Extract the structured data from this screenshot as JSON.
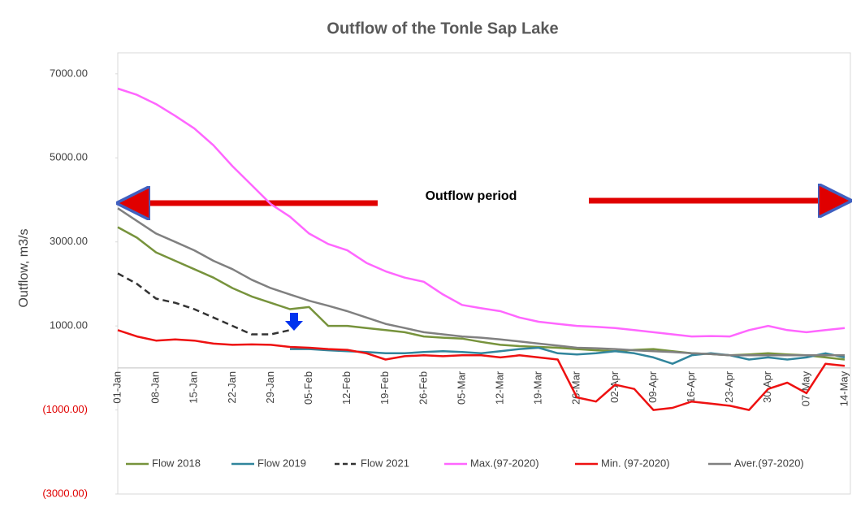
{
  "chart_data": {
    "type": "line",
    "title": "Outflow of the Tonle Sap Lake",
    "y_label": "Outflow, m3/s",
    "annotation": "Outflow period",
    "categories": [
      "01-Jan",
      null,
      "08-Jan",
      null,
      "15-Jan",
      null,
      "22-Jan",
      null,
      "29-Jan",
      null,
      "05-Feb",
      null,
      "12-Feb",
      null,
      "19-Feb",
      null,
      "26-Feb",
      null,
      "05-Mar",
      null,
      "12-Mar",
      null,
      "19-Mar",
      null,
      "26-Mar",
      null,
      "02-Apr",
      null,
      "09-Apr",
      null,
      "16-Apr",
      null,
      "23-Apr",
      null,
      "30-Apr",
      null,
      "07-May",
      null,
      "14-May"
    ],
    "ylim": [
      -3000,
      7500
    ],
    "yticks": [
      {
        "value": 7000,
        "label": "7000.00"
      },
      {
        "value": 5000,
        "label": "5000.00"
      },
      {
        "value": 3000,
        "label": "3000.00"
      },
      {
        "value": 1000,
        "label": "1000.00"
      },
      {
        "value": -1000,
        "label": "(1000.00)"
      },
      {
        "value": -3000,
        "label": "(3000.00)"
      }
    ],
    "grid": false,
    "legend": "bottom",
    "series": [
      {
        "name": "Flow 2018",
        "color": "#77933c",
        "dash": false,
        "values": [
          3350,
          3100,
          2750,
          2550,
          2350,
          2150,
          1900,
          1700,
          1550,
          1400,
          1450,
          1000,
          1000,
          950,
          900,
          850,
          750,
          720,
          700,
          620,
          550,
          520,
          500,
          480,
          450,
          420,
          400,
          430,
          450,
          400,
          350,
          330,
          300,
          320,
          350,
          320,
          300,
          250,
          200
        ]
      },
      {
        "name": "Flow 2019",
        "color": "#31859c",
        "dash": false,
        "values": [
          null,
          null,
          null,
          null,
          null,
          null,
          null,
          null,
          null,
          450,
          450,
          420,
          400,
          380,
          350,
          350,
          380,
          400,
          380,
          350,
          400,
          450,
          480,
          350,
          320,
          350,
          400,
          350,
          250,
          100,
          300,
          350,
          300,
          200,
          250,
          200,
          250,
          350,
          250
        ]
      },
      {
        "name": "Flow 2021",
        "color": "#333333",
        "dash": true,
        "values": [
          2250,
          2000,
          1650,
          1550,
          1400,
          1200,
          1000,
          800,
          800,
          900,
          null,
          null,
          null,
          null,
          null,
          null,
          null,
          null,
          null,
          null,
          null,
          null,
          null,
          null,
          null,
          null,
          null,
          null,
          null,
          null,
          null,
          null,
          null,
          null,
          null,
          null,
          null,
          null,
          null
        ]
      },
      {
        "name": "Max.(97-2020)",
        "color": "#ff66ff",
        "dash": false,
        "values": [
          6650,
          6500,
          6280,
          6000,
          5700,
          5300,
          4800,
          4350,
          3900,
          3600,
          3200,
          2950,
          2800,
          2500,
          2300,
          2150,
          2050,
          1750,
          1500,
          1420,
          1350,
          1200,
          1100,
          1050,
          1000,
          980,
          950,
          900,
          850,
          800,
          750,
          760,
          750,
          900,
          1000,
          900,
          850,
          900,
          950
        ]
      },
      {
        "name": "Min. (97-2020)",
        "color": "#ee1111",
        "dash": false,
        "values": [
          900,
          750,
          650,
          680,
          650,
          580,
          550,
          560,
          550,
          500,
          480,
          450,
          430,
          350,
          200,
          280,
          300,
          280,
          300,
          300,
          250,
          300,
          250,
          200,
          -700,
          -800,
          -400,
          -500,
          -1000,
          -950,
          -800,
          -850,
          -900,
          -1000,
          -500,
          -350,
          -600,
          100,
          50
        ]
      },
      {
        "name": "Aver.(97-2020)",
        "color": "#808080",
        "dash": false,
        "values": [
          3800,
          3500,
          3200,
          3000,
          2800,
          2550,
          2350,
          2100,
          1900,
          1750,
          1600,
          1480,
          1350,
          1200,
          1050,
          950,
          850,
          800,
          750,
          720,
          680,
          630,
          580,
          530,
          480,
          470,
          450,
          420,
          400,
          380,
          350,
          330,
          300,
          300,
          300,
          300,
          300,
          300,
          300
        ]
      }
    ]
  }
}
